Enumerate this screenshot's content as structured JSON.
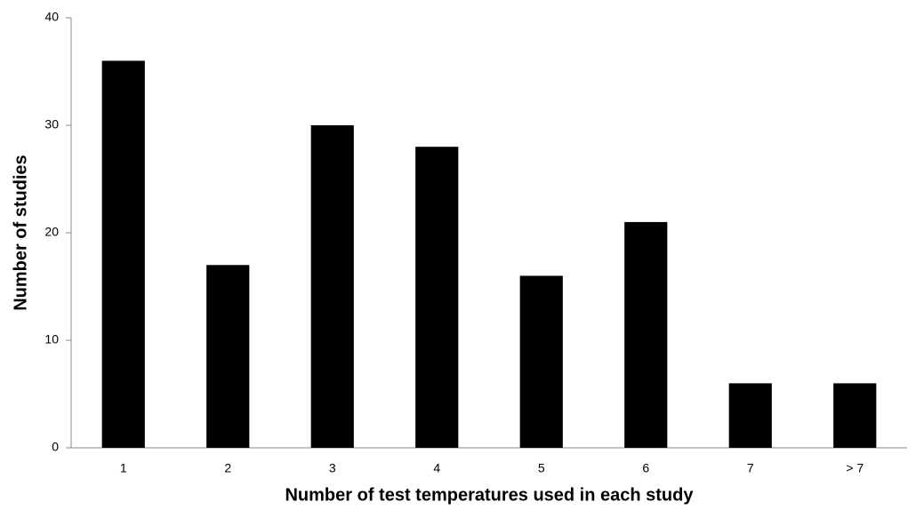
{
  "chart_data": {
    "type": "bar",
    "xlabel": "Number of test temperatures used in each study",
    "ylabel": "Number of studies",
    "categories": [
      "1",
      "2",
      "3",
      "4",
      "5",
      "6",
      "7",
      "> 7"
    ],
    "values": [
      36,
      17,
      30,
      28,
      16,
      21,
      6,
      6
    ],
    "color": "#000000",
    "ylim": [
      0,
      40
    ],
    "yticks": [
      0,
      10,
      20,
      30,
      40
    ],
    "grid": false
  }
}
